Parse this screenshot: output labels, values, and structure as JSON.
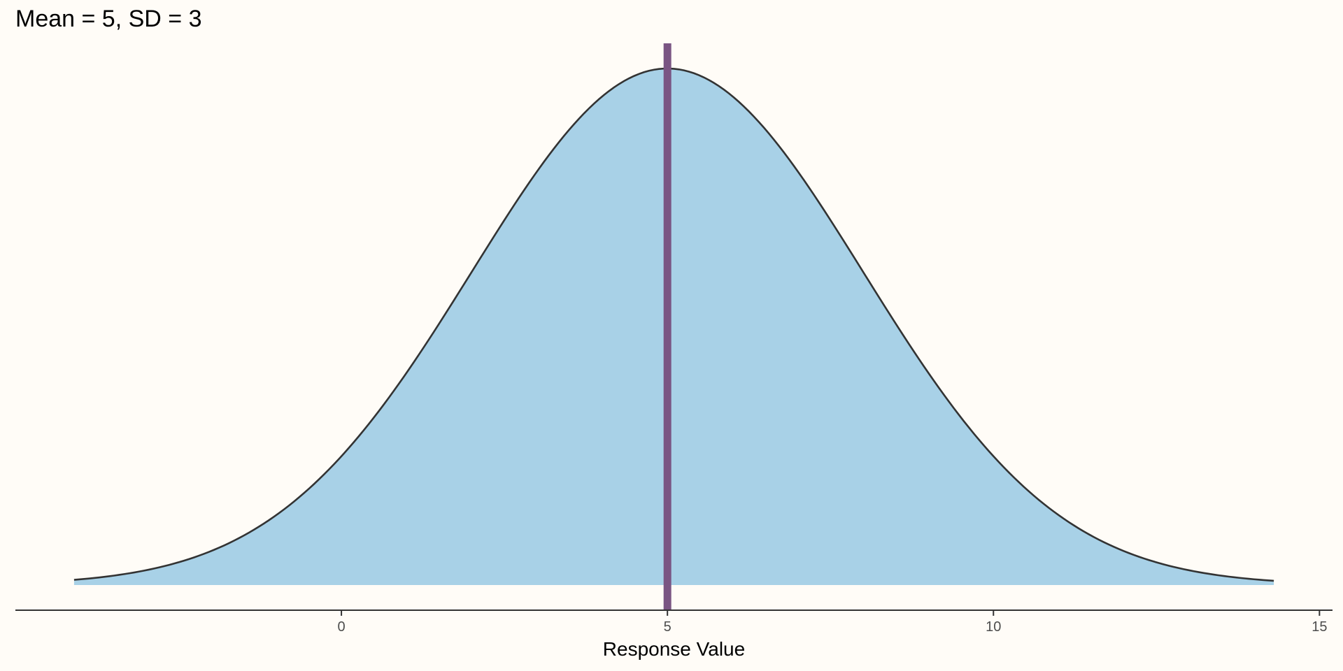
{
  "chart_data": {
    "type": "area",
    "title": "Mean = 5, SD = 3",
    "xlabel": "Response Value",
    "ylabel": "",
    "distribution": "normal",
    "mean": 5,
    "sd": 3,
    "x_range": [
      -4.1,
      14.3
    ],
    "xlim": [
      -5,
      15.2
    ],
    "x_ticks": [
      0,
      5,
      10,
      15
    ],
    "x_tick_labels": [
      "0",
      "5",
      "10",
      "15"
    ],
    "reference_line": {
      "x": 5
    },
    "grid": false,
    "legend": "none",
    "colors": {
      "background": "#FFFCF7",
      "fill": "#A8D1E7",
      "curve": "#333333",
      "reference_line": "#7A5583",
      "axis": "#333333"
    }
  }
}
